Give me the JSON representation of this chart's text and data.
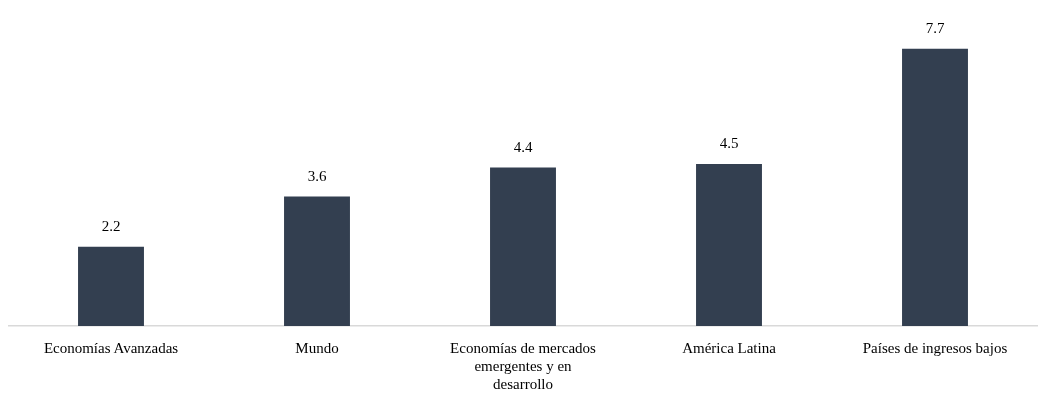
{
  "chart_data": {
    "type": "bar",
    "categories": [
      "Economías Avanzadas",
      "Mundo",
      "Economías de mercados emergentes y en desarrollo",
      "América Latina",
      "Países de ingresos bajos"
    ],
    "values": [
      2.2,
      3.6,
      4.4,
      4.5,
      7.7
    ],
    "color": "#333f50",
    "data_labels": true,
    "grid": false,
    "legend": false
  }
}
